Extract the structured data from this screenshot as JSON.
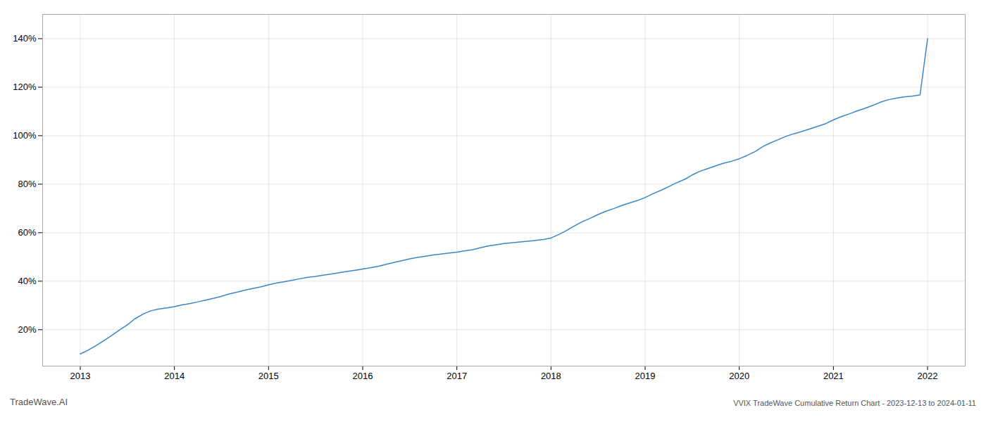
{
  "chart_data": {
    "type": "line",
    "title": "VVIX TradeWave Cumulative Return Chart - 2023-12-13 to 2024-01-11",
    "annotations": [
      "TradeWave.AI"
    ],
    "color": "#3a86c8",
    "grid": true,
    "xlim": [
      2012.6,
      2022.4
    ],
    "xticks": [
      2013,
      2014,
      2015,
      2016,
      2017,
      2018,
      2019,
      2020,
      2021,
      2022
    ],
    "ylim": [
      0.05,
      1.5
    ],
    "yticks": [
      {
        "value": 0.2,
        "label": "20%"
      },
      {
        "value": 0.4,
        "label": "40%"
      },
      {
        "value": 0.6,
        "label": "60%"
      },
      {
        "value": 0.8,
        "label": "80%"
      },
      {
        "value": 1.0,
        "label": "100%"
      },
      {
        "value": 1.2,
        "label": "120%"
      },
      {
        "value": 1.4,
        "label": "140%"
      }
    ],
    "x": [
      2013.0,
      2013.08,
      2013.17,
      2013.25,
      2013.33,
      2013.42,
      2013.5,
      2013.58,
      2013.67,
      2013.75,
      2013.83,
      2013.92,
      2014.0,
      2014.08,
      2014.17,
      2014.25,
      2014.33,
      2014.42,
      2014.5,
      2014.58,
      2014.67,
      2014.75,
      2014.83,
      2014.92,
      2015.0,
      2015.08,
      2015.17,
      2015.25,
      2015.33,
      2015.42,
      2015.5,
      2015.58,
      2015.67,
      2015.75,
      2015.83,
      2015.92,
      2016.0,
      2016.08,
      2016.17,
      2016.25,
      2016.33,
      2016.42,
      2016.5,
      2016.58,
      2016.67,
      2016.75,
      2016.83,
      2016.92,
      2017.0,
      2017.08,
      2017.17,
      2017.25,
      2017.33,
      2017.42,
      2017.5,
      2017.58,
      2017.67,
      2017.75,
      2017.83,
      2017.92,
      2018.0,
      2018.08,
      2018.17,
      2018.25,
      2018.33,
      2018.42,
      2018.5,
      2018.58,
      2018.67,
      2018.75,
      2018.83,
      2018.92,
      2019.0,
      2019.08,
      2019.17,
      2019.25,
      2019.33,
      2019.42,
      2019.5,
      2019.58,
      2019.67,
      2019.75,
      2019.83,
      2019.92,
      2020.0,
      2020.08,
      2020.17,
      2020.25,
      2020.33,
      2020.42,
      2020.5,
      2020.58,
      2020.67,
      2020.75,
      2020.83,
      2020.92,
      2021.0,
      2021.08,
      2021.17,
      2021.25,
      2021.33,
      2021.42,
      2021.5,
      2021.58,
      2021.67,
      2021.75,
      2021.83,
      2021.92,
      2022.0
    ],
    "values": [
      0.1,
      0.115,
      0.135,
      0.155,
      0.175,
      0.2,
      0.22,
      0.245,
      0.265,
      0.278,
      0.285,
      0.29,
      0.295,
      0.302,
      0.308,
      0.315,
      0.322,
      0.33,
      0.338,
      0.347,
      0.355,
      0.363,
      0.37,
      0.377,
      0.385,
      0.392,
      0.398,
      0.404,
      0.41,
      0.416,
      0.42,
      0.425,
      0.43,
      0.435,
      0.44,
      0.445,
      0.45,
      0.455,
      0.462,
      0.47,
      0.477,
      0.485,
      0.492,
      0.498,
      0.503,
      0.508,
      0.512,
      0.516,
      0.52,
      0.525,
      0.53,
      0.538,
      0.545,
      0.55,
      0.555,
      0.558,
      0.562,
      0.565,
      0.568,
      0.572,
      0.578,
      0.592,
      0.61,
      0.628,
      0.645,
      0.66,
      0.675,
      0.688,
      0.7,
      0.712,
      0.722,
      0.733,
      0.745,
      0.76,
      0.775,
      0.79,
      0.805,
      0.82,
      0.838,
      0.853,
      0.865,
      0.876,
      0.886,
      0.895,
      0.905,
      0.918,
      0.935,
      0.955,
      0.97,
      0.985,
      0.998,
      1.008,
      1.018,
      1.028,
      1.038,
      1.05,
      1.065,
      1.078,
      1.09,
      1.102,
      1.112,
      1.125,
      1.138,
      1.148,
      1.155,
      1.16,
      1.163,
      1.168,
      1.4
    ]
  }
}
